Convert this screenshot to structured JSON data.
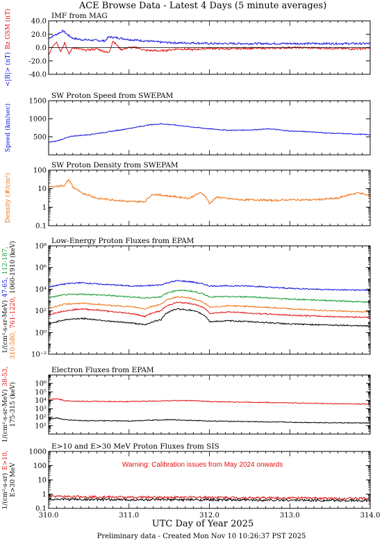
{
  "page": {
    "title": "ACE Browse Data - Latest 4 Days (5 minute averages)",
    "x_axis_label": "UTC Day of Year 2025",
    "footer": "Preliminary data - Created Mon Nov 10 10:26:37 PST 2025"
  },
  "colors": {
    "blue": "#1010dd",
    "red": "#e01010",
    "orange": "#ee7010",
    "green": "#109a30",
    "black": "#000000"
  },
  "chart_data": [
    {
      "type": "line",
      "title": "IMF from MAG",
      "scale": "linear",
      "ylim": [
        -40,
        40
      ],
      "yticks": [
        -40,
        -20,
        0,
        20,
        40
      ],
      "ytick_labels": [
        "-40.0",
        "-20.0",
        "0.0",
        "20.0",
        "40.0"
      ],
      "zero_line": true,
      "ylabel_parts": [
        {
          "text": "<|B|> (nT)",
          "color": "#1010dd"
        },
        {
          "text": "Bz GSM (nT)",
          "color": "#e01010"
        }
      ],
      "noise": 1.5,
      "series": [
        {
          "color": "#1010dd",
          "x": [
            310.0,
            310.1,
            310.18,
            310.25,
            310.3,
            310.4,
            310.55,
            310.7,
            310.75,
            310.9,
            311.0,
            311.2,
            311.3,
            311.4,
            311.6,
            311.8,
            312.0,
            312.2,
            312.5,
            312.8,
            313.0,
            313.5,
            314.0
          ],
          "y": [
            14,
            20,
            25,
            18,
            14,
            12,
            11,
            10,
            16,
            14,
            12,
            10,
            9,
            8,
            7,
            7,
            6,
            6,
            6,
            6,
            6,
            6,
            6
          ]
        },
        {
          "color": "#e01010",
          "x": [
            310.0,
            310.05,
            310.1,
            310.15,
            310.2,
            310.25,
            310.3,
            310.45,
            310.6,
            310.75,
            310.8,
            310.9,
            311.0,
            311.1,
            311.2,
            311.4,
            311.6,
            311.8,
            312.0,
            312.2,
            312.5,
            312.8,
            313.0,
            313.5,
            313.8,
            314.0
          ],
          "y": [
            -12,
            2,
            9,
            -6,
            8,
            -10,
            0,
            -4,
            -2,
            -8,
            10,
            -3,
            0,
            0,
            -4,
            -5,
            -2,
            -3,
            -1,
            -2,
            -1,
            -1,
            0,
            -1,
            -2,
            -1
          ]
        }
      ]
    },
    {
      "type": "line",
      "title": "SW Proton Speed from SWEPAM",
      "scale": "linear",
      "ylim": [
        0,
        1500
      ],
      "yticks": [
        500,
        1000,
        1500
      ],
      "ytick_labels": [
        "500",
        "1000",
        "1500"
      ],
      "ylabel_parts": [
        {
          "text": "Speed (km/sec)",
          "color": "#1010dd"
        }
      ],
      "noise": 12,
      "series": [
        {
          "color": "#1010dd",
          "x": [
            310.0,
            310.1,
            310.2,
            310.3,
            310.5,
            310.75,
            311.0,
            311.25,
            311.4,
            311.6,
            311.75,
            312.0,
            312.25,
            312.5,
            312.75,
            313.0,
            313.25,
            313.5,
            313.75,
            314.0
          ],
          "y": [
            350,
            380,
            460,
            520,
            560,
            640,
            730,
            830,
            860,
            820,
            780,
            720,
            680,
            690,
            720,
            660,
            640,
            600,
            580,
            560
          ]
        }
      ]
    },
    {
      "type": "line",
      "title": "SW Proton Density from SWEPAM",
      "scale": "log",
      "ylim": [
        0.1,
        100
      ],
      "yticks": [
        0.1,
        1,
        10,
        100
      ],
      "ytick_labels": [
        "0.1",
        "1",
        "10",
        "100"
      ],
      "ylabel_parts": [
        {
          "text": "Density (#/cm³)",
          "color": "#ee7010"
        }
      ],
      "noise": 0.05,
      "series": [
        {
          "color": "#ee7010",
          "x": [
            310.0,
            310.2,
            310.25,
            310.3,
            310.4,
            310.6,
            310.8,
            311.0,
            311.2,
            311.3,
            311.5,
            311.75,
            311.9,
            312.0,
            312.1,
            312.2,
            312.4,
            312.6,
            312.8,
            313.0,
            313.3,
            313.6,
            313.85,
            314.0
          ],
          "y": [
            12,
            15,
            30,
            12,
            6,
            3,
            2.5,
            2,
            2,
            5,
            4,
            3,
            6,
            1.5,
            3.5,
            3,
            2.5,
            2.5,
            2.3,
            2.5,
            2.5,
            3,
            6,
            4
          ]
        }
      ]
    },
    {
      "type": "line",
      "title": "Low-Energy Proton Fluxes from EPAM",
      "scale": "log",
      "ylim": [
        0.01,
        100000000
      ],
      "yticks": [
        0.01,
        1,
        100,
        10000,
        1000000,
        100000000
      ],
      "ytick_labels": [
        "10⁻²",
        "10⁰",
        "10²",
        "10⁴",
        "10⁶",
        "10⁸"
      ],
      "ylabel_parts": [
        {
          "text": "1/(cm²-s-sr-MeV)",
          "color": "#000000"
        },
        {
          "text": "47-65,",
          "color": "#1010dd"
        },
        {
          "text": "112-187,",
          "color": "#109a30"
        },
        {
          "text": "310-580,",
          "color": "#ee7010"
        },
        {
          "text": "761-1220,",
          "color": "#e01010"
        },
        {
          "text": "1060-1910 (keV)",
          "color": "#000000"
        }
      ],
      "noise": 0.06,
      "series": [
        {
          "color": "#1010dd",
          "x": [
            310.0,
            310.2,
            310.4,
            310.6,
            310.8,
            311.0,
            311.2,
            311.4,
            311.6,
            311.75,
            312.0,
            312.25,
            312.5,
            312.75,
            313.0,
            313.5,
            314.0
          ],
          "y": [
            15000,
            30000,
            40000,
            30000,
            25000,
            20000,
            20000,
            25000,
            60000,
            50000,
            20000,
            20000,
            20000,
            15000,
            12000,
            9000,
            8000
          ]
        },
        {
          "color": "#109a30",
          "x": [
            310.0,
            310.2,
            310.4,
            310.6,
            310.8,
            311.0,
            311.2,
            311.4,
            311.6,
            311.75,
            312.0,
            312.25,
            312.5,
            312.75,
            313.0,
            313.5,
            314.0
          ],
          "y": [
            1500,
            3000,
            3500,
            3000,
            2500,
            2000,
            1500,
            2000,
            8000,
            7000,
            2000,
            2000,
            2000,
            1500,
            1200,
            900,
            600
          ]
        },
        {
          "color": "#ee7010",
          "x": [
            310.0,
            310.2,
            310.4,
            310.6,
            310.8,
            311.0,
            311.2,
            311.4,
            311.6,
            311.75,
            312.0,
            312.25,
            312.5,
            312.75,
            313.0,
            313.5,
            314.0
          ],
          "y": [
            150,
            400,
            500,
            400,
            300,
            250,
            150,
            400,
            2000,
            1500,
            200,
            300,
            250,
            200,
            150,
            100,
            80
          ]
        },
        {
          "color": "#e01010",
          "x": [
            310.0,
            310.2,
            310.4,
            310.6,
            310.8,
            311.0,
            311.2,
            311.4,
            311.6,
            311.75,
            312.0,
            312.25,
            312.5,
            312.75,
            313.0,
            313.5,
            314.0
          ],
          "y": [
            40,
            100,
            150,
            120,
            80,
            60,
            30,
            100,
            600,
            500,
            60,
            80,
            60,
            50,
            40,
            30,
            25
          ]
        },
        {
          "color": "#000000",
          "x": [
            310.0,
            310.2,
            310.4,
            310.6,
            310.8,
            311.0,
            311.2,
            311.4,
            311.6,
            311.75,
            312.0,
            312.25,
            312.5,
            312.75,
            313.0,
            313.5,
            314.0
          ],
          "y": [
            5,
            15,
            20,
            15,
            10,
            8,
            5,
            15,
            150,
            120,
            10,
            12,
            10,
            8,
            6,
            5,
            4
          ]
        }
      ]
    },
    {
      "type": "line",
      "title": "Electron Fluxes from EPAM",
      "scale": "log",
      "ylim": [
        1,
        10000000
      ],
      "yticks": [
        10,
        100,
        1000,
        10000,
        100000,
        1000000
      ],
      "ytick_labels": [
        "10¹",
        "10²",
        "10³",
        "10⁴",
        "10⁵",
        "10⁶"
      ],
      "ylabel_parts": [
        {
          "text": "1/(cm²-s-sr-MeV)",
          "color": "#000000"
        },
        {
          "text": "38-53,",
          "color": "#e01010"
        },
        {
          "text": "175-315 (keV)",
          "color": "#000000"
        }
      ],
      "noise": 0.05,
      "series": [
        {
          "color": "#e01010",
          "x": [
            310.0,
            310.1,
            310.2,
            310.3,
            310.5,
            311.0,
            311.5,
            311.75,
            312.0,
            312.5,
            313.0,
            313.5,
            314.0
          ],
          "y": [
            12000,
            15000,
            9000,
            8000,
            7500,
            7000,
            9000,
            9500,
            7000,
            6000,
            5000,
            4000,
            3500
          ]
        },
        {
          "color": "#000000",
          "x": [
            310.0,
            310.1,
            310.2,
            310.4,
            311.0,
            311.5,
            312.0,
            312.5,
            313.0,
            313.5,
            314.0
          ],
          "y": [
            60,
            80,
            50,
            40,
            35,
            50,
            35,
            30,
            25,
            22,
            20
          ]
        }
      ]
    },
    {
      "type": "line",
      "title": "E>10 and E>30 MeV Proton Fluxes from SIS",
      "scale": "log",
      "ylim": [
        0.1,
        1000
      ],
      "yticks": [
        0.1,
        1,
        10,
        100,
        1000
      ],
      "ytick_labels": [
        "0.1",
        "1",
        "10",
        "100",
        "1000"
      ],
      "annotation": "Warning: Calibration issues from May 2024 onwards",
      "ylabel_parts": [
        {
          "text": "1/(cm²-s-sr)",
          "color": "#000000"
        },
        {
          "text": "E>10,",
          "color": "#e01010"
        },
        {
          "text": "E>30 MeV",
          "color": "#000000"
        }
      ],
      "noise": 0.08,
      "series": [
        {
          "color": "#e01010",
          "x": [
            310.0,
            310.5,
            311.0,
            311.5,
            312.0,
            312.5,
            313.0,
            313.5,
            314.0
          ],
          "y": [
            0.7,
            0.65,
            0.6,
            0.6,
            0.6,
            0.55,
            0.55,
            0.5,
            0.5
          ]
        },
        {
          "color": "#000000",
          "x": [
            310.0,
            310.5,
            311.0,
            311.5,
            312.0,
            312.5,
            313.0,
            313.5,
            314.0
          ],
          "y": [
            0.45,
            0.42,
            0.4,
            0.4,
            0.4,
            0.38,
            0.38,
            0.36,
            0.35
          ]
        }
      ]
    }
  ],
  "x_axis": {
    "xlim": [
      310.0,
      314.0
    ],
    "ticks": [
      310.0,
      311.0,
      312.0,
      313.0,
      314.0
    ],
    "tick_labels": [
      "310.0",
      "311.0",
      "312.0",
      "313.0",
      "314.0"
    ]
  }
}
